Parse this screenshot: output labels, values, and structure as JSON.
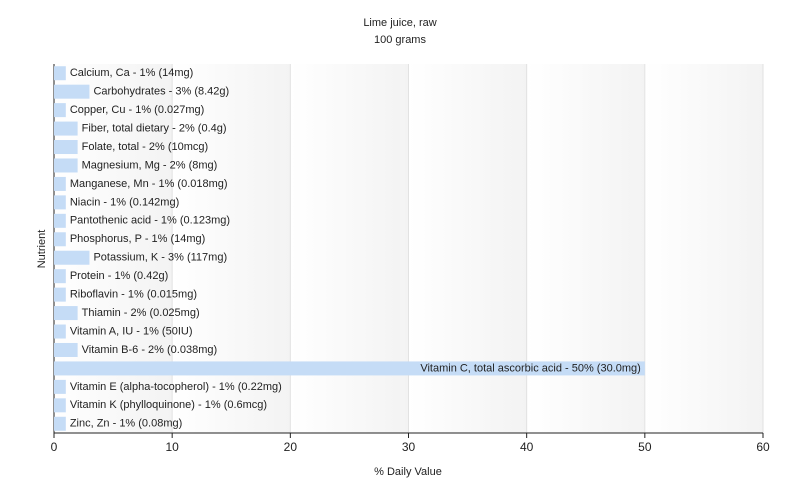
{
  "chart_data": {
    "type": "bar",
    "orientation": "horizontal",
    "title": "Lime juice, raw",
    "subtitle": "100 grams",
    "x_label": "% Daily Value",
    "y_label": "Nutrient",
    "values": [
      1,
      3,
      1,
      2,
      2,
      2,
      1,
      1,
      1,
      1,
      3,
      1,
      1,
      2,
      1,
      2,
      50,
      1,
      1,
      1
    ],
    "value_labels": [
      "Calcium, Ca - 1% (14mg)",
      "Carbohydrates - 3% (8.42g)",
      "Copper, Cu - 1% (0.027mg)",
      "Fiber, total dietary - 2% (0.4g)",
      "Folate, total - 2% (10mcg)",
      "Magnesium, Mg - 2% (8mg)",
      "Manganese, Mn - 1% (0.018mg)",
      "Niacin - 1% (0.142mg)",
      "Pantothenic acid - 1% (0.123mg)",
      "Phosphorus, P - 1% (14mg)",
      "Potassium, K - 3% (117mg)",
      "Protein - 1% (0.42g)",
      "Riboflavin - 1% (0.015mg)",
      "Thiamin - 2% (0.025mg)",
      "Vitamin A, IU - 1% (50IU)",
      "Vitamin B-6 - 2% (0.038mg)",
      "Vitamin C, total ascorbic acid - 50% (30.0mg)",
      "Vitamin E (alpha-tocopherol) - 1% (0.22mg)",
      "Vitamin K (phylloquinone) - 1% (0.6mcg)",
      "Zinc, Zn - 1% (0.08mg)"
    ],
    "color": "#c5dcf6",
    "xlim": [
      0,
      60
    ],
    "xticks": [
      0,
      10,
      20,
      30,
      40,
      50,
      60
    ],
    "grid": true
  }
}
